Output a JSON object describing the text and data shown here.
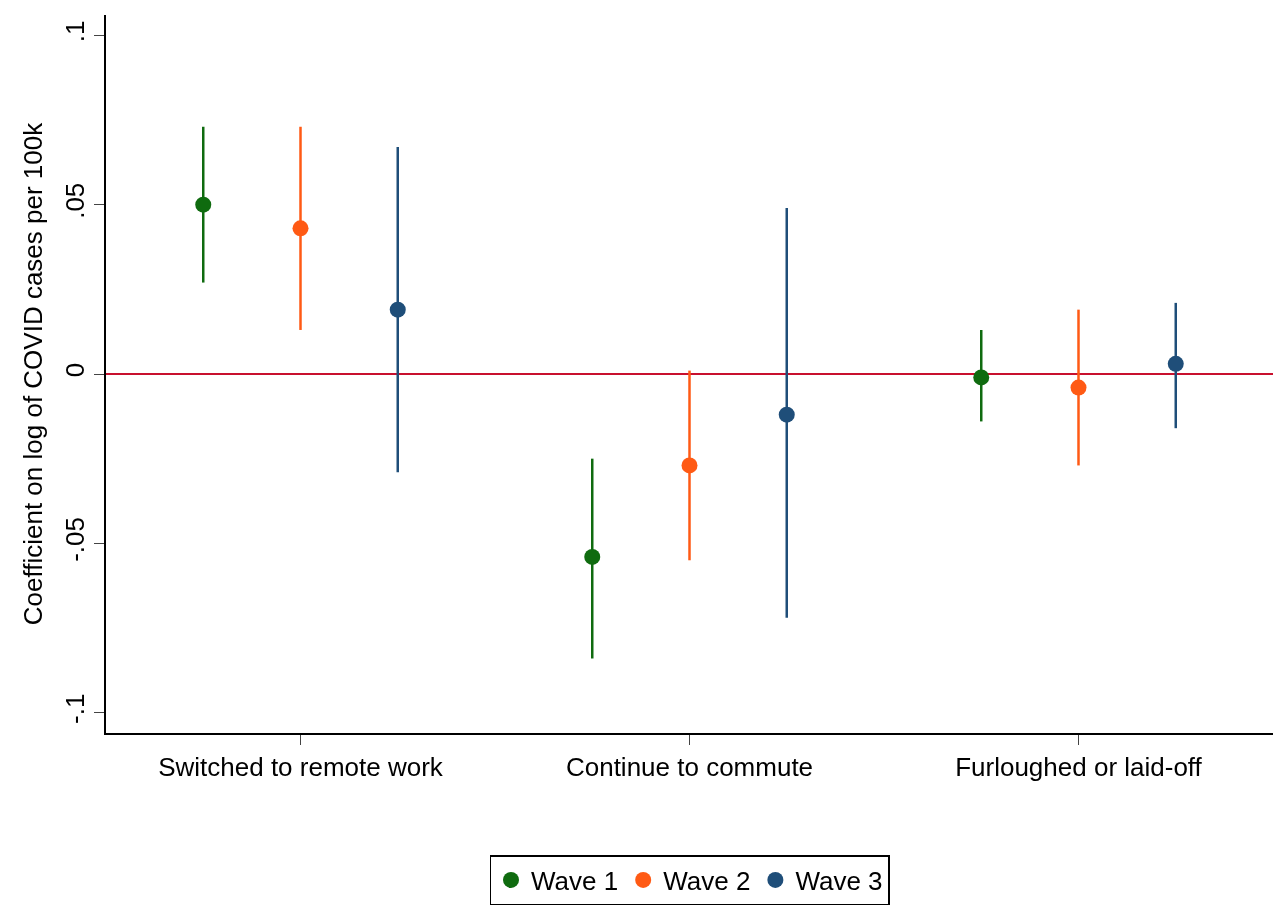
{
  "chart_data": {
    "type": "scatter",
    "ylabel": "Coefficient on log of COVID cases per 100k",
    "categories": [
      "Switched to remote work",
      "Continue to commute",
      "Furloughed or laid-off"
    ],
    "series": [
      {
        "name": "Wave 1",
        "color": "#0f6b0f",
        "values": [
          0.05,
          -0.054,
          -0.001
        ],
        "errors": [
          [
            0.027,
            0.073
          ],
          [
            -0.084,
            -0.025
          ],
          [
            -0.014,
            0.013
          ]
        ]
      },
      {
        "name": "Wave 2",
        "color": "#ff5a14",
        "values": [
          0.043,
          -0.027,
          -0.004
        ],
        "errors": [
          [
            0.013,
            0.073
          ],
          [
            -0.055,
            0.001
          ],
          [
            -0.027,
            0.019
          ]
        ]
      },
      {
        "name": "Wave 3",
        "color": "#1f4e79",
        "values": [
          0.019,
          -0.012,
          0.003
        ],
        "errors": [
          [
            -0.029,
            0.067
          ],
          [
            -0.072,
            0.049
          ],
          [
            -0.016,
            0.021
          ]
        ]
      }
    ],
    "ylim": [
      -0.106,
      0.106
    ],
    "yticks": [
      {
        "value": -0.1,
        "label": "-.1"
      },
      {
        "value": -0.05,
        "label": "-.05"
      },
      0,
      {
        "value": 0.05,
        "label": ".05"
      },
      {
        "value": 0.1,
        "label": ".1"
      }
    ],
    "ref_lines": [
      {
        "axis": "y",
        "value": 0,
        "color": "#c8102e"
      }
    ],
    "marker": "circle",
    "legend": "bottom",
    "grid": false
  }
}
